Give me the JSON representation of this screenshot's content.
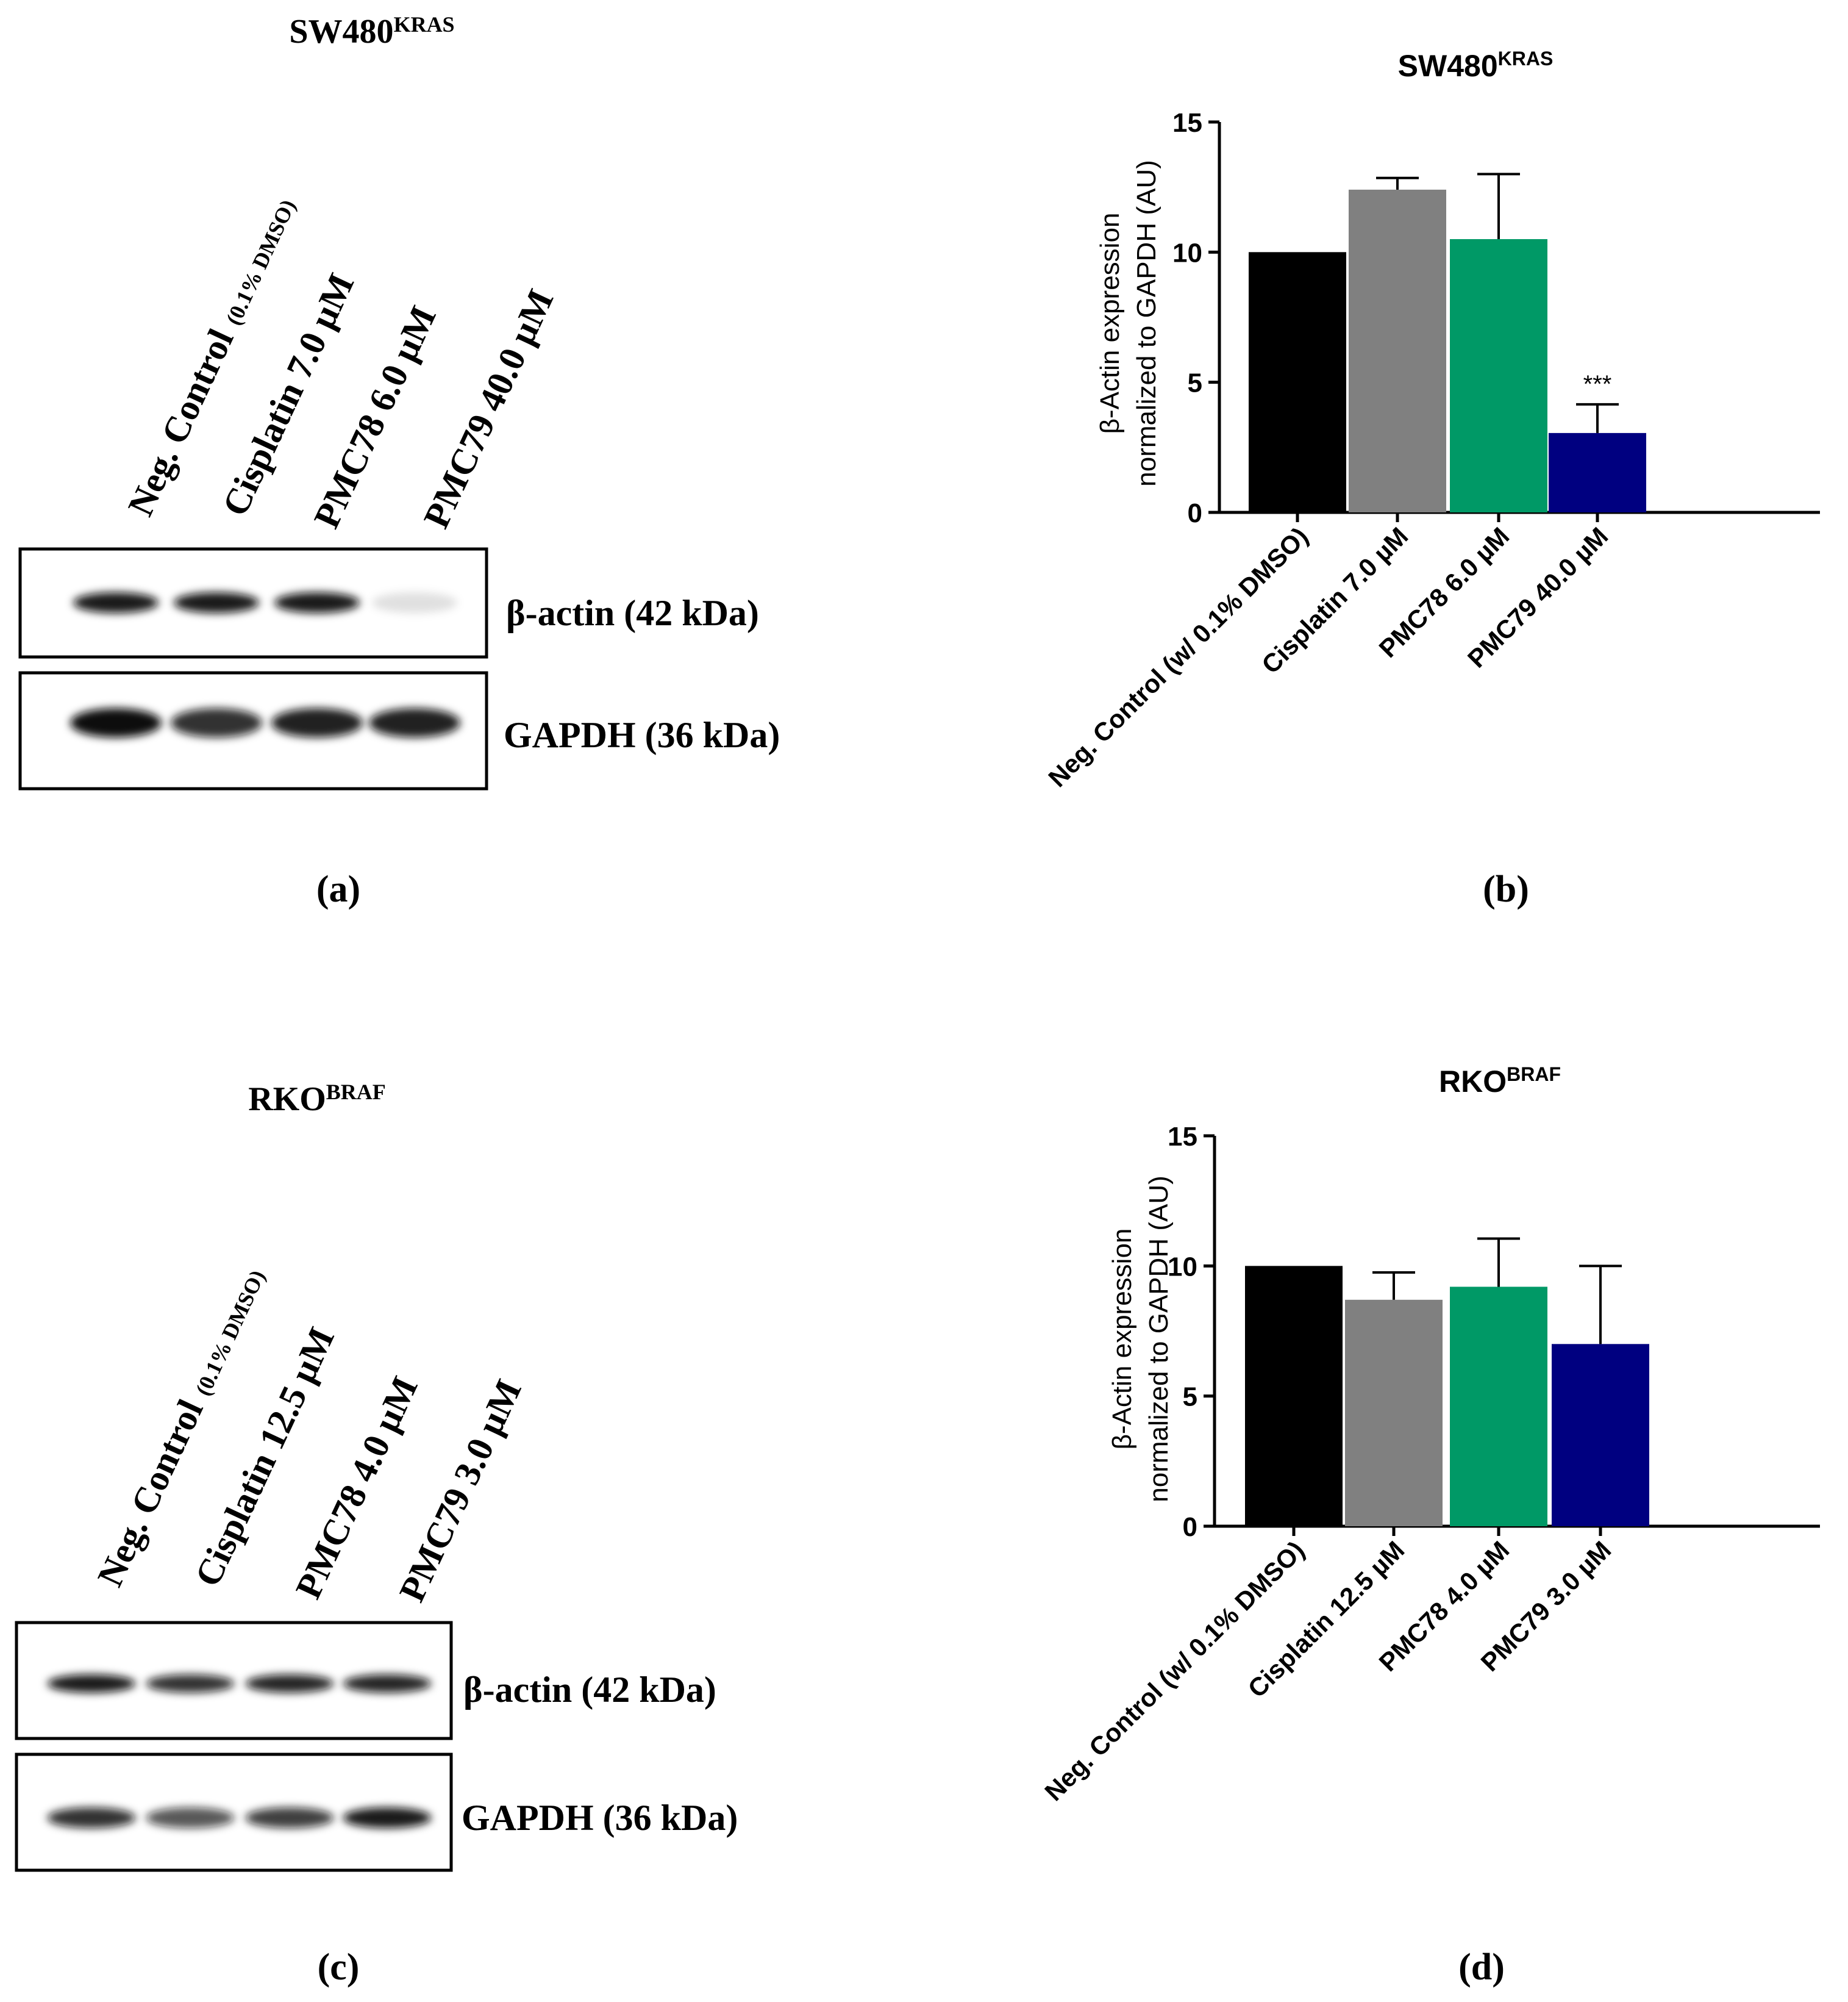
{
  "panels": {
    "a": {
      "title_main": "SW480",
      "title_sup": "KRAS",
      "lanes": [
        {
          "main": "Neg. Control",
          "small": "(0.1% DMSO)"
        },
        {
          "main": "Cisplatin 7.0 µM",
          "small": ""
        },
        {
          "main": "PMC78 6.0 µM",
          "small": ""
        },
        {
          "main": "PMC79 40.0 µM",
          "small": ""
        }
      ],
      "blots": [
        {
          "label": "β-actin (42 kDa)",
          "band_intensity": [
            0.95,
            0.95,
            0.95,
            0.12
          ]
        },
        {
          "label": "GAPDH (36 kDa)",
          "band_intensity": [
            1.0,
            0.85,
            0.92,
            0.92
          ]
        }
      ],
      "caption": "(a)"
    },
    "c": {
      "title_main": "RKO",
      "title_sup": "BRAF",
      "lanes": [
        {
          "main": "Neg. Control",
          "small": "(0.1% DMSO)"
        },
        {
          "main": "Cisplatin 12.5 µM",
          "small": ""
        },
        {
          "main": "PMC78 4.0 µM",
          "small": ""
        },
        {
          "main": "PMC79 3.0 µM",
          "small": ""
        }
      ],
      "blots": [
        {
          "label": "β-actin (42 kDa)",
          "band_intensity": [
            0.95,
            0.85,
            0.9,
            0.9
          ]
        },
        {
          "label": "GAPDH (36 kDa)",
          "band_intensity": [
            0.85,
            0.7,
            0.8,
            0.95
          ]
        }
      ],
      "caption": "(c)"
    },
    "b": {
      "caption": "(b)"
    },
    "d": {
      "caption": "(d)"
    }
  },
  "chart_data": [
    {
      "type": "bar",
      "title": "SW480",
      "title_sup": "KRAS",
      "ylabel_line1": "β-Actin expression",
      "ylabel_line2": "normalized to GAPDH (AU)",
      "categories": [
        "Neg. Control (w/ 0.1% DMSO)",
        "Cisplatin 7.0 µM",
        "PMC78 6.0 µM",
        "PMC79 40.0 µM"
      ],
      "values": [
        10.0,
        12.4,
        10.5,
        3.05
      ],
      "errors": [
        0,
        0.45,
        2.5,
        1.1
      ],
      "colors": [
        "#000000",
        "#808080",
        "#009966",
        "#000080"
      ],
      "annotations": [
        "",
        "",
        "",
        "***"
      ],
      "ylim": [
        0,
        15
      ],
      "yticks": [
        0,
        5,
        10,
        15
      ],
      "grid": false
    },
    {
      "type": "bar",
      "title": "RKO",
      "title_sup": "BRAF",
      "ylabel_line1": "β-Actin expression",
      "ylabel_line2": "normalized to GAPDH (AU)",
      "categories": [
        "Neg. Control (w/ 0.1% DMSO)",
        "Cisplatin 12.5 µM",
        "PMC78 4.0 µM",
        "PMC79 3.0 µM"
      ],
      "values": [
        10.0,
        8.7,
        9.2,
        7.0
      ],
      "errors": [
        0,
        1.05,
        1.85,
        3.0
      ],
      "colors": [
        "#000000",
        "#808080",
        "#009966",
        "#000080"
      ],
      "annotations": [
        "",
        "",
        "",
        ""
      ],
      "ylim": [
        0,
        15
      ],
      "yticks": [
        0,
        5,
        10,
        15
      ],
      "grid": false
    }
  ]
}
